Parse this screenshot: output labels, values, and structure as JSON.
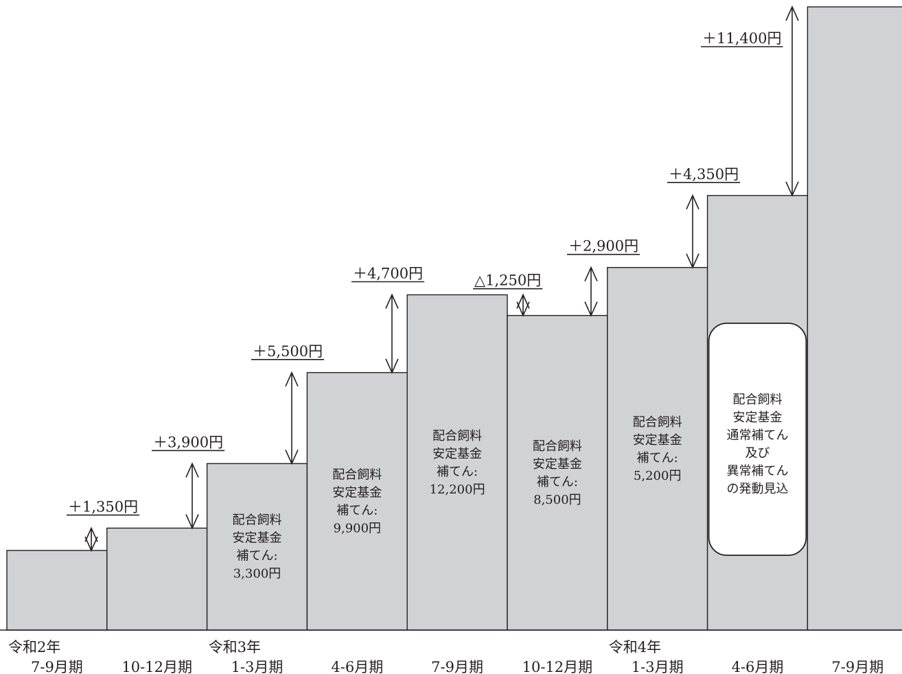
{
  "chart_data": {
    "type": "bar",
    "title": "",
    "xlabel": "",
    "ylabel": "",
    "categories": [
      "7-9月期",
      "10-12月期",
      "1-3月期",
      "4-6月期",
      "7-9月期",
      "10-12月期",
      "1-3月期",
      "4-6月期",
      "7-9月期"
    ],
    "year_labels": [
      {
        "index": 0,
        "label": "令和2年"
      },
      {
        "index": 2,
        "label": "令和3年"
      },
      {
        "index": 6,
        "label": "令和4年"
      }
    ],
    "changes": [
      {
        "index": 1,
        "delta": 1350,
        "label": "＋1,350円"
      },
      {
        "index": 2,
        "delta": 3900,
        "label": "＋3,900円"
      },
      {
        "index": 3,
        "delta": 5500,
        "label": "＋5,500円"
      },
      {
        "index": 4,
        "delta": 4700,
        "label": "＋4,700円"
      },
      {
        "index": 5,
        "delta": -1250,
        "label": "△1,250円"
      },
      {
        "index": 6,
        "delta": 2900,
        "label": "＋2,900円"
      },
      {
        "index": 7,
        "delta": 4350,
        "label": "＋4,350円"
      },
      {
        "index": 8,
        "delta": 11400,
        "label": "＋11,400円"
      }
    ],
    "values": [
      0,
      1350,
      5250,
      10750,
      15450,
      14200,
      17100,
      21450,
      32850
    ],
    "subsidies": [
      {
        "index": 2,
        "lines": [
          "配合飼料",
          "安定基金",
          "補てん:",
          "3,300円"
        ]
      },
      {
        "index": 3,
        "lines": [
          "配合飼料",
          "安定基金",
          "補てん:",
          "9,900円"
        ]
      },
      {
        "index": 4,
        "lines": [
          "配合飼料",
          "安定基金",
          "補てん:",
          "12,200円"
        ]
      },
      {
        "index": 5,
        "lines": [
          "配合飼料",
          "安定基金",
          "補てん:",
          "8,500円"
        ]
      },
      {
        "index": 6,
        "lines": [
          "配合飼料",
          "安定基金",
          "補てん:",
          "5,200円"
        ]
      }
    ],
    "callout": {
      "index": 7,
      "lines": [
        "配合飼料",
        "安定基金",
        "通常補てん",
        "及び",
        "異常補てん",
        "の発動見込"
      ]
    },
    "ylim": [
      -4000,
      33200
    ],
    "grid": false,
    "legend": "none",
    "colors": {
      "bar": "#d1d2d4",
      "ink": "#231f20",
      "callout": "#ffffff"
    }
  }
}
